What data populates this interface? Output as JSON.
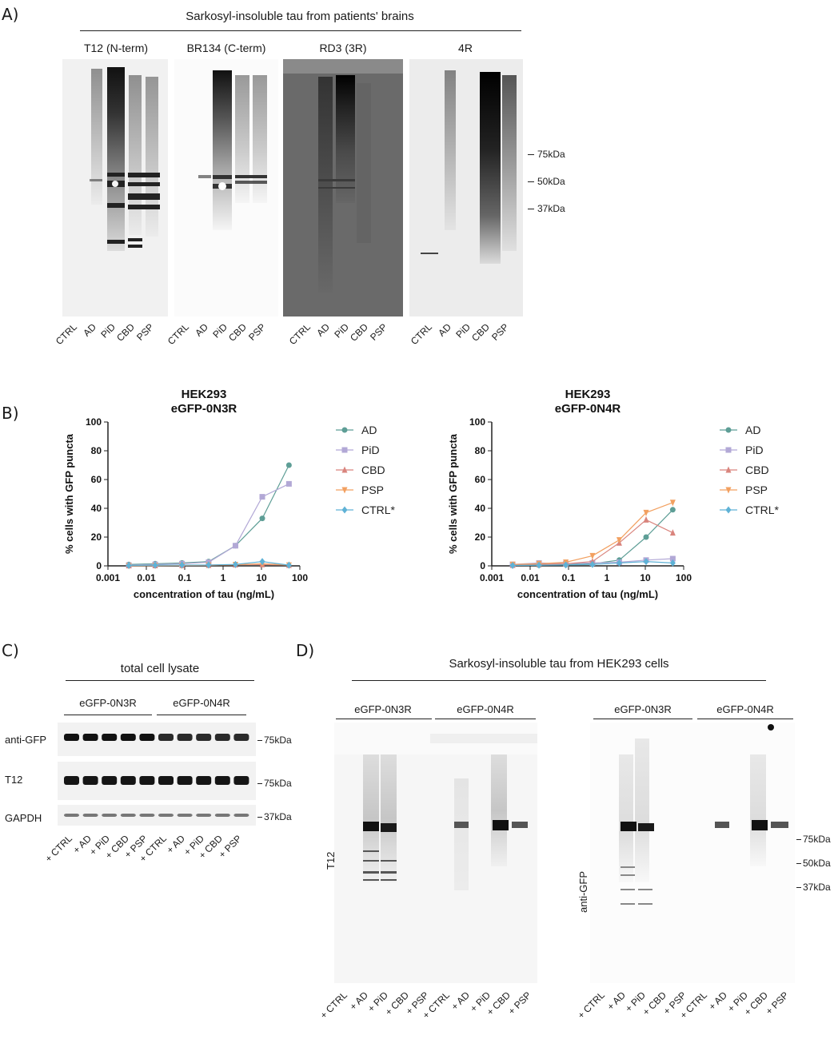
{
  "panel_a": {
    "letter": "A)",
    "title": "Sarkosyl-insoluble tau from patients' brains",
    "blots": [
      {
        "label": "T12 (N-term)"
      },
      {
        "label": "BR134 (C-term)"
      },
      {
        "label": "RD3 (3R)"
      },
      {
        "label": "4R"
      }
    ],
    "lanes": [
      "CTRL",
      "AD",
      "PiD",
      "CBD",
      "PSP"
    ],
    "markers": [
      "75kDa",
      "50kDa",
      "37kDa"
    ]
  },
  "panel_b": {
    "letter": "B)"
  },
  "chart_data": [
    {
      "type": "line",
      "title": "HEK293",
      "subtitle": "eGFP-0N3R",
      "xlabel": "concentration of tau (ng/mL)",
      "ylabel": "% cells with GFP puncta",
      "xscale": "log",
      "xlim": [
        0.001,
        100
      ],
      "ylim": [
        0,
        100
      ],
      "xticks": [
        "0.001",
        "0.01",
        "0.1",
        "1",
        "10",
        "100"
      ],
      "yticks": [
        "0",
        "20",
        "40",
        "60",
        "80",
        "100"
      ],
      "x": [
        0.0035,
        0.017,
        0.085,
        0.42,
        2.1,
        10.5,
        52
      ],
      "legend_position": "right",
      "series": [
        {
          "name": "AD",
          "color": "#5e9e96",
          "marker": "circle",
          "values": [
            1,
            1.5,
            2,
            3,
            14,
            33,
            70
          ]
        },
        {
          "name": "PiD",
          "color": "#b2a8d6",
          "marker": "square",
          "values": [
            0.5,
            1,
            1.5,
            2.5,
            14,
            48,
            57
          ]
        },
        {
          "name": "CBD",
          "color": "#d9847d",
          "marker": "triangle-up",
          "values": [
            0.2,
            0.3,
            0.4,
            0.5,
            0.8,
            1,
            0.5
          ]
        },
        {
          "name": "PSP",
          "color": "#f2a060",
          "marker": "triangle-down",
          "values": [
            0.1,
            0.2,
            0.3,
            0.5,
            0.8,
            1.5,
            0.5
          ]
        },
        {
          "name": "CTRL*",
          "color": "#5fb2d6",
          "marker": "diamond",
          "values": [
            0.3,
            0.5,
            0.6,
            0.6,
            1,
            3,
            0.5
          ]
        }
      ]
    },
    {
      "type": "line",
      "title": "HEK293",
      "subtitle": "eGFP-0N4R",
      "xlabel": "concentration of tau (ng/mL)",
      "ylabel": "% cells with GFP puncta",
      "xscale": "log",
      "xlim": [
        0.001,
        100
      ],
      "ylim": [
        0,
        100
      ],
      "xticks": [
        "0.001",
        "0.01",
        "0.1",
        "1",
        "10",
        "100"
      ],
      "yticks": [
        "0",
        "20",
        "40",
        "60",
        "80",
        "100"
      ],
      "x": [
        0.0035,
        0.017,
        0.085,
        0.42,
        2.1,
        10.5,
        52
      ],
      "legend_position": "right",
      "series": [
        {
          "name": "AD",
          "color": "#5e9e96",
          "marker": "circle",
          "values": [
            0.5,
            0.5,
            0.8,
            1.5,
            4,
            20,
            39
          ]
        },
        {
          "name": "PiD",
          "color": "#b2a8d6",
          "marker": "square",
          "values": [
            1,
            2,
            1.5,
            2,
            2.5,
            4,
            5
          ]
        },
        {
          "name": "CBD",
          "color": "#d9847d",
          "marker": "triangle-up",
          "values": [
            0.5,
            1,
            1.5,
            3,
            16,
            32,
            23
          ]
        },
        {
          "name": "PSP",
          "color": "#f2a060",
          "marker": "triangle-down",
          "values": [
            1,
            1.5,
            2.5,
            7,
            18,
            37,
            44
          ]
        },
        {
          "name": "CTRL*",
          "color": "#5fb2d6",
          "marker": "diamond",
          "values": [
            0.3,
            0.5,
            0.6,
            1,
            2,
            3,
            2
          ]
        }
      ]
    }
  ],
  "panel_c": {
    "letter": "C)",
    "title": "total cell lysate",
    "group1": "eGFP-0N3R",
    "group2": "eGFP-0N4R",
    "rows": [
      {
        "label": "anti-GFP",
        "marker": "75kDa"
      },
      {
        "label": "T12",
        "marker": "75kDa"
      },
      {
        "label": "GAPDH",
        "marker": "37kDa"
      }
    ],
    "lanes": [
      "+ CTRL",
      "+ AD",
      "+ PiD",
      "+ CBD",
      "+ PSP",
      "+ CTRL",
      "+ AD",
      "+ PiD",
      "+ CBD",
      "+ PSP"
    ]
  },
  "panel_d": {
    "letter": "D)",
    "title": "Sarkosyl-insoluble tau from HEK293 cells",
    "group1": "eGFP-0N3R",
    "group2": "eGFP-0N4R",
    "blot1_label": "T12",
    "blot2_label": "anti-GFP",
    "markers": [
      "75kDa",
      "50kDa",
      "37kDa"
    ],
    "lanes": [
      "+ CTRL",
      "+ AD",
      "+ PiD",
      "+ CBD",
      "+ PSP",
      "+ CTRL",
      "+ AD",
      "+ PiD",
      "+ CBD",
      "+ PSP"
    ]
  }
}
